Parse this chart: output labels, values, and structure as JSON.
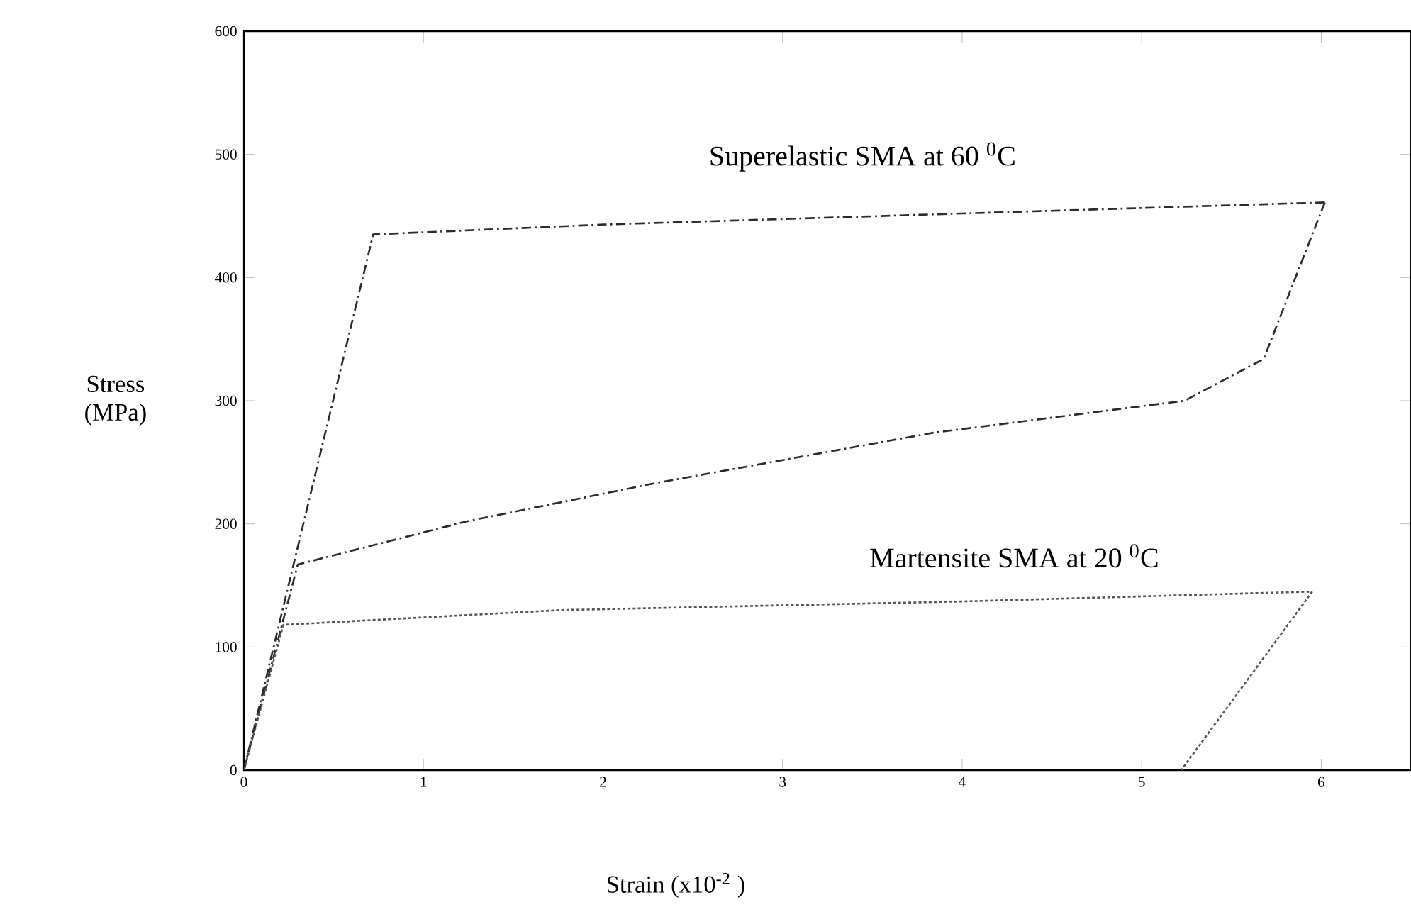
{
  "chart_data": {
    "type": "line",
    "xlabel": "Strain (x10$^{-2}$ )",
    "ylabel": "Stress (MPa)",
    "xlim": [
      0,
      6.5
    ],
    "ylim": [
      0,
      600
    ],
    "xticks": [
      0,
      1,
      2,
      3,
      4,
      5,
      6
    ],
    "yticks": [
      0,
      100,
      200,
      300,
      400,
      500,
      600
    ],
    "grid": false,
    "marker": "none",
    "series": [
      {
        "color": "#2b2b2b",
        "line_style": "dashed",
        "x": [
          0,
          0.72,
          2.0,
          4.0,
          6.02
        ],
        "values": [
          0,
          435,
          443,
          452,
          461
        ]
      },
      {
        "color": "#2b2b2b",
        "line_style": "dashed",
        "x": [
          6.02,
          5.68,
          5.24,
          3.84,
          2.29,
          1.24,
          0.3,
          0
        ],
        "values": [
          461,
          334,
          300,
          274,
          233,
          202,
          167,
          0
        ]
      },
      {
        "color": "#555555",
        "line_style": "dotted",
        "x": [
          0,
          0.22,
          1.77,
          4.0,
          5.95
        ],
        "values": [
          0,
          118,
          130,
          137,
          145
        ]
      },
      {
        "color": "#555555",
        "line_style": "dotted",
        "x": [
          5.95,
          5.22
        ],
        "values": [
          145,
          0
        ]
      }
    ],
    "annotations": [
      "Superelastic SMA at 60 $^{0}$C",
      "Martensite SMA at 20 $^{0}$C"
    ]
  }
}
